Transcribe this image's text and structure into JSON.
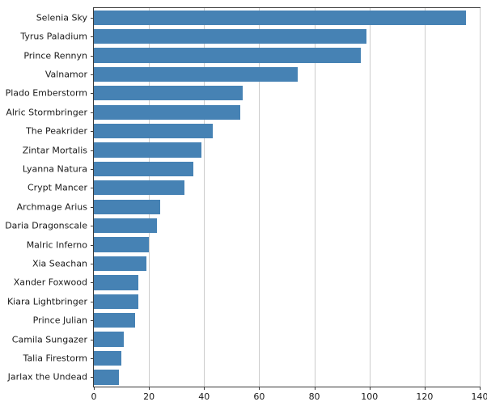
{
  "chart_data": {
    "type": "bar",
    "orientation": "horizontal",
    "title": "",
    "xlabel": "",
    "ylabel": "",
    "grid": true,
    "bar_color": "#4682B4",
    "grid_color": "#cccccc",
    "xlim": [
      0,
      140
    ],
    "xticks": [
      0,
      20,
      40,
      60,
      80,
      100,
      120,
      140
    ],
    "categories": [
      "Selenia Sky",
      "Tyrus Paladium",
      "Prince Rennyn",
      "Valnamor",
      "Plado Emberstorm",
      "Alric Stormbringer",
      "The Peakrider",
      "Zintar Mortalis",
      "Lyanna Natura",
      "Crypt Mancer",
      "Archmage Arius",
      "Daria Dragonscale",
      "Malric Inferno",
      "Xia Seachan",
      "Xander Foxwood",
      "Kiara Lightbringer",
      "Prince Julian",
      "Camila Sungazer",
      "Talia Firestorm",
      "Jarlax the Undead"
    ],
    "values": [
      135,
      99,
      97,
      74,
      54,
      53,
      43,
      39,
      36,
      33,
      24,
      23,
      20,
      19,
      16,
      16,
      15,
      11,
      10,
      9
    ]
  }
}
